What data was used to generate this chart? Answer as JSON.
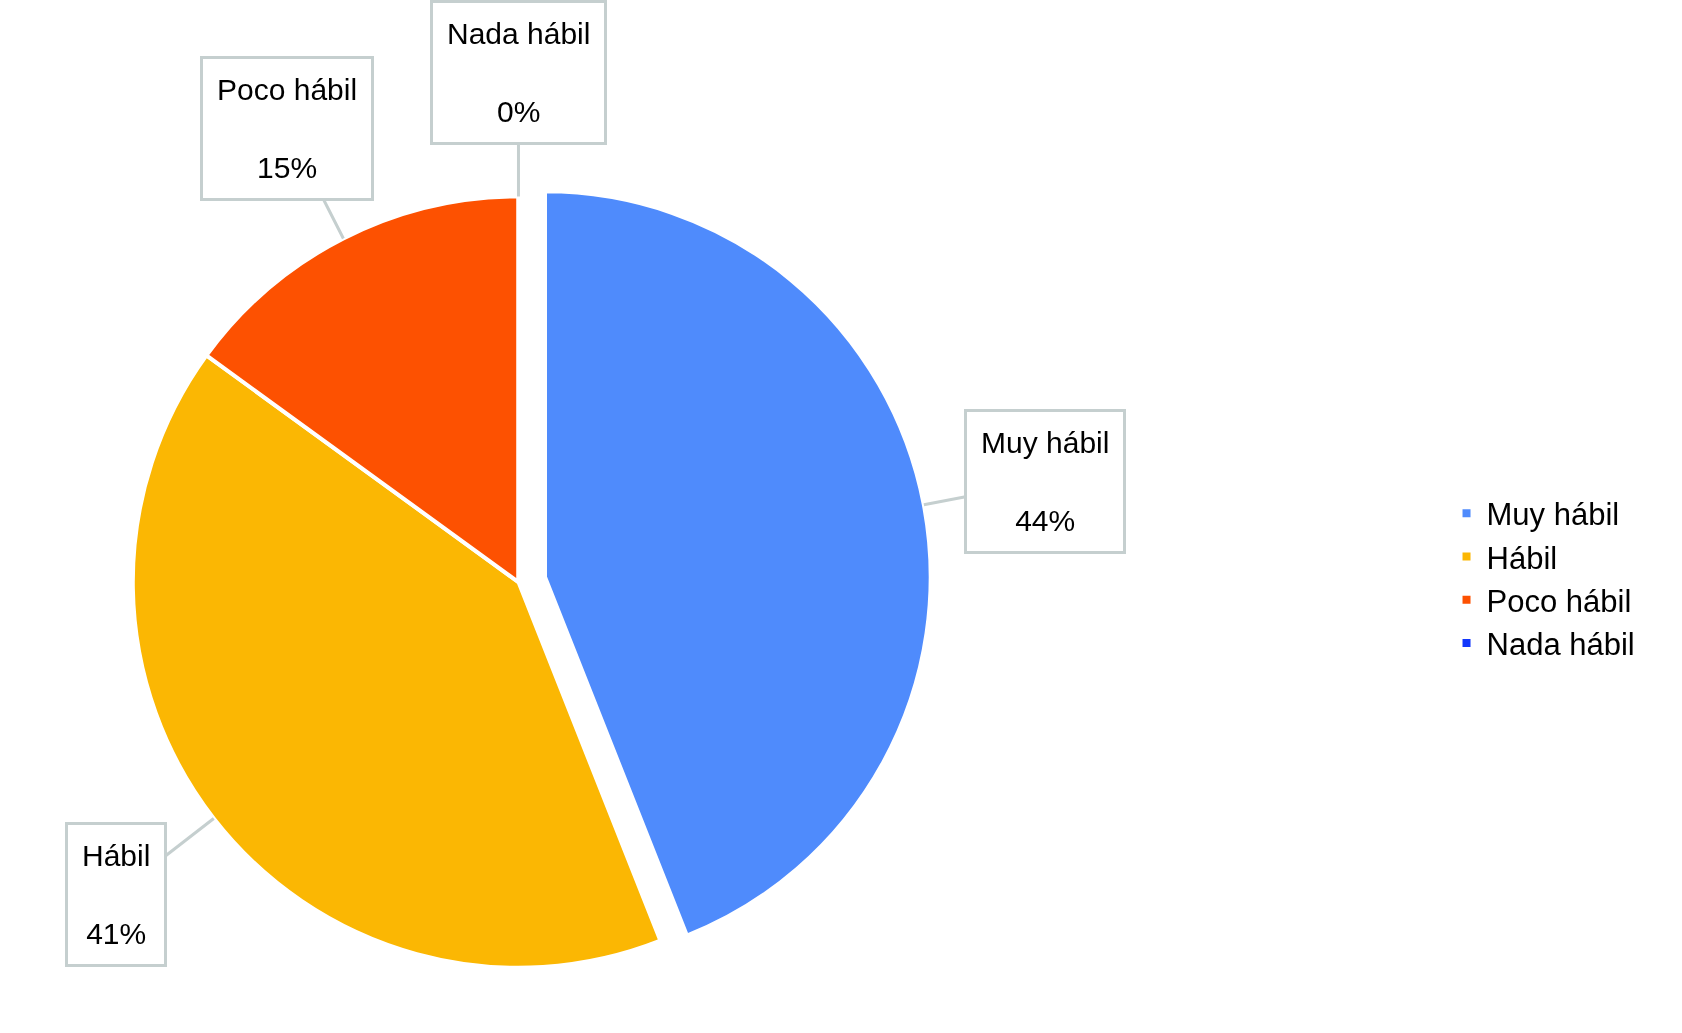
{
  "chart_data": {
    "type": "pie",
    "categories": [
      "Muy hábil",
      "Hábil",
      "Poco hábil",
      "Nada hábil"
    ],
    "values": [
      44,
      41,
      15,
      0
    ],
    "colors": [
      "#4f8bfc",
      "#fbb703",
      "#fd5101",
      "#1237fc"
    ],
    "value_labels": [
      "44%",
      "41%",
      "15%",
      "0%"
    ],
    "legend": "right"
  }
}
